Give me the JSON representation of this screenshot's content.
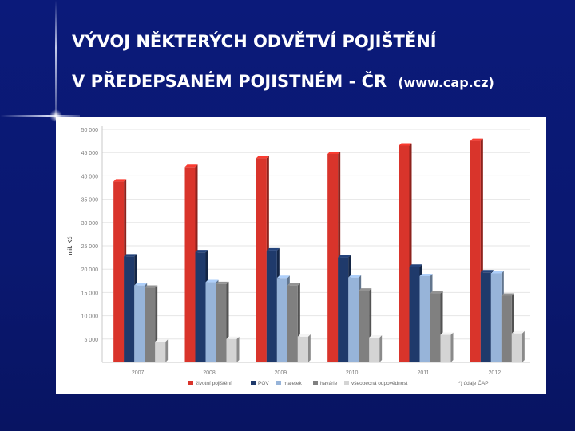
{
  "slide": {
    "title_line1": "VÝVOJ NĚKTERÝCH ODVĚTVÍ POJIŠTĚNÍ",
    "title_line2": "V PŘEDEPSANÉM POJISTNÉM - ČR",
    "title_source": "(www.cap.cz)"
  },
  "chart_data": {
    "type": "bar",
    "ylabel": "mil. Kč",
    "ylim": [
      0,
      50000
    ],
    "yticks": [
      5000,
      10000,
      15000,
      20000,
      25000,
      30000,
      35000,
      40000,
      45000,
      50000
    ],
    "ytick_labels": [
      "5 000",
      "10 000",
      "15 000",
      "20 000",
      "25 000",
      "30 000",
      "35 000",
      "40 000",
      "45 000",
      "50 000"
    ],
    "categories": [
      "2007",
      "2008",
      "2009",
      "2010",
      "2011",
      "2012"
    ],
    "grid": true,
    "legend_position": "bottom",
    "series": [
      {
        "name": "životní pojištění",
        "color": "#d9342b",
        "values": [
          38800,
          41900,
          43800,
          44700,
          46500,
          47500
        ]
      },
      {
        "name": "POV",
        "color": "#1f3a6b",
        "values": [
          22700,
          23600,
          24000,
          22500,
          20500,
          19300
        ]
      },
      {
        "name": "majetek",
        "color": "#97b4d9",
        "values": [
          16500,
          17200,
          18100,
          18200,
          18500,
          19100
        ]
      },
      {
        "name": "havárie",
        "color": "#808080",
        "values": [
          16000,
          16800,
          16500,
          15400,
          14800,
          14300
        ]
      },
      {
        "name": "všeobecná odpovědnost",
        "color": "#d4d4d4",
        "values": [
          4400,
          5000,
          5500,
          5300,
          5900,
          6200
        ]
      }
    ],
    "footnote": "*) údaje ČAP"
  }
}
